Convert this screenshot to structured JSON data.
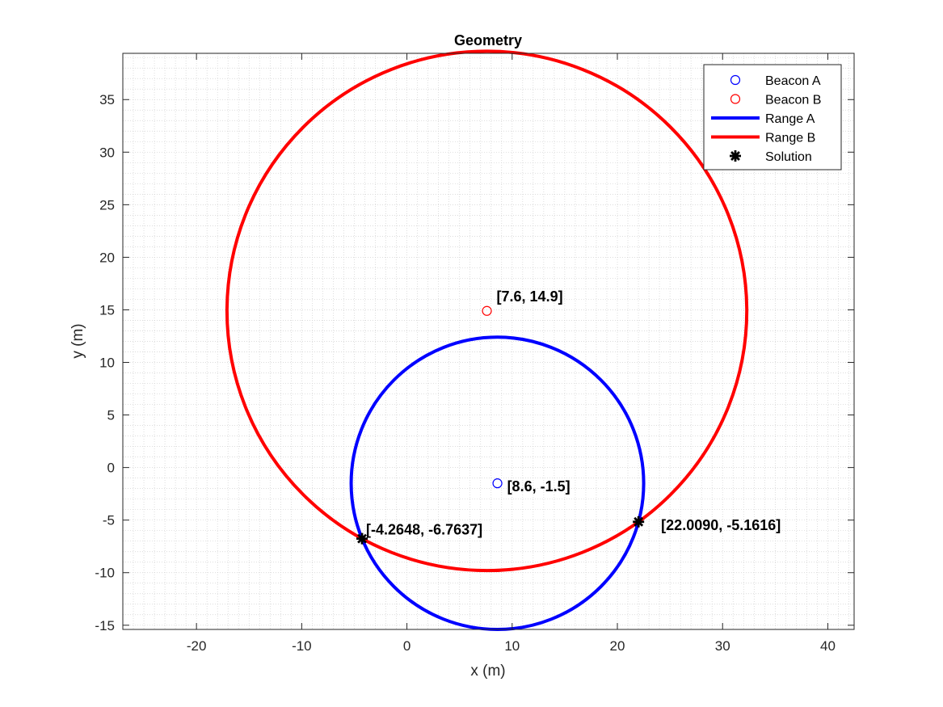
{
  "chart_data": {
    "type": "scatter",
    "title": "Geometry",
    "xlabel": "x (m)",
    "ylabel": "y (m)",
    "xlim": [
      -27,
      42.5
    ],
    "ylim": [
      -15.4,
      39.4
    ],
    "xticks": [
      -20,
      -10,
      0,
      10,
      20,
      30,
      40
    ],
    "yticks": [
      -15,
      -10,
      -5,
      0,
      5,
      10,
      15,
      20,
      25,
      30,
      35
    ],
    "grid": "minor",
    "legend_position": "top-right",
    "beacons": [
      {
        "name": "Beacon A",
        "x": 8.6,
        "y": -1.5,
        "color": "#0000ff",
        "label": "[8.6, -1.5]"
      },
      {
        "name": "Beacon B",
        "x": 7.6,
        "y": 14.9,
        "color": "#ff0000",
        "label": "[7.6, 14.9]"
      }
    ],
    "ranges": [
      {
        "name": "Range A",
        "cx": 8.6,
        "cy": -1.5,
        "r": 13.9,
        "color": "#0000ff"
      },
      {
        "name": "Range B",
        "cx": 7.6,
        "cy": 14.9,
        "r": 24.7,
        "color": "#ff0000"
      }
    ],
    "solutions": [
      {
        "x": -4.2648,
        "y": -6.7637,
        "label": "[-4.2648, -6.7637]"
      },
      {
        "x": 22.009,
        "y": -5.1616,
        "label": "[22.0090, -5.1616]"
      }
    ],
    "legend": [
      "Beacon A",
      "Beacon B",
      "Range A",
      "Range B",
      "Solution"
    ]
  }
}
